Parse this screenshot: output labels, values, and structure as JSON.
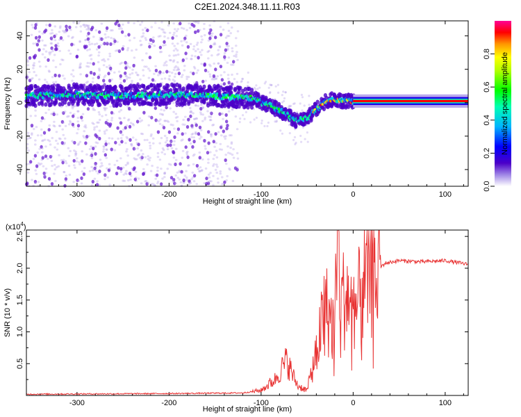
{
  "title": "C2E1.2024.348.11.11.R03",
  "chart_data": [
    {
      "type": "heatmap",
      "xlabel": "Height of straight line (km)",
      "ylabel": "Frequency (Hz)",
      "xlim": [
        -355,
        125
      ],
      "ylim": [
        -50,
        49
      ],
      "xticks": [
        -300,
        -200,
        -100,
        0,
        100
      ],
      "yticks": [
        -40,
        -20,
        0,
        20,
        40
      ],
      "colorbar": {
        "label": "Normalized spectral amplitude",
        "range": [
          0,
          1
        ],
        "ticks": [
          0.0,
          0.2,
          0.4,
          0.6,
          0.8
        ],
        "tick_labels": [
          "0.0",
          "0.2",
          "0.4",
          "0.6",
          "0.8"
        ]
      },
      "ridge": {
        "description_points": [
          [
            -355,
            4
          ],
          [
            -300,
            5
          ],
          [
            -250,
            4
          ],
          [
            -200,
            5
          ],
          [
            -150,
            4
          ],
          [
            -110,
            3
          ],
          [
            -90,
            -2
          ],
          [
            -75,
            -6
          ],
          [
            -62,
            -11
          ],
          [
            -50,
            -9
          ],
          [
            -40,
            -4
          ],
          [
            -30,
            1
          ],
          [
            -20,
            2
          ],
          [
            -10,
            1
          ],
          [
            0,
            1
          ],
          [
            125,
            1
          ]
        ],
        "noise_region_end_km": -125
      }
    },
    {
      "type": "line",
      "xlabel": "Height of straight line (km)",
      "ylabel": "SNR (10 * v/v)",
      "y_multiplier": "(x10",
      "y_exponent": "4",
      "y_multiplier_close": ")",
      "xlim": [
        -355,
        125
      ],
      "ylim": [
        0,
        2.6
      ],
      "xticks": [
        -300,
        -200,
        -100,
        0,
        100
      ],
      "yticks": [
        0.5,
        1.0,
        1.5,
        2.0,
        2.5
      ],
      "ytick_labels": [
        "0.5",
        "1.0",
        "1.5",
        "2.0",
        "2.5"
      ],
      "series": [
        {
          "name": "SNR",
          "color": "#e83232",
          "envelope": [
            [
              -355,
              0.02
            ],
            [
              -200,
              0.03
            ],
            [
              -120,
              0.04
            ],
            [
              -100,
              0.08
            ],
            [
              -85,
              0.25
            ],
            [
              -72,
              0.55
            ],
            [
              -65,
              0.3
            ],
            [
              -60,
              0.15
            ],
            [
              -50,
              0.08
            ],
            [
              -40,
              0.7
            ],
            [
              -30,
              1.4
            ],
            [
              -20,
              1.0
            ],
            [
              -18,
              2.6
            ],
            [
              -12,
              1.5
            ],
            [
              -5,
              1.6
            ],
            [
              0,
              1.2
            ],
            [
              10,
              1.7
            ],
            [
              20,
              1.9
            ],
            [
              35,
              2.08
            ],
            [
              50,
              2.12
            ],
            [
              75,
              2.1
            ],
            [
              100,
              2.12
            ],
            [
              125,
              2.06
            ]
          ]
        }
      ]
    }
  ],
  "colors": {
    "line": "#e83232",
    "frame": "#000000",
    "noise": "#7b3fd6"
  }
}
